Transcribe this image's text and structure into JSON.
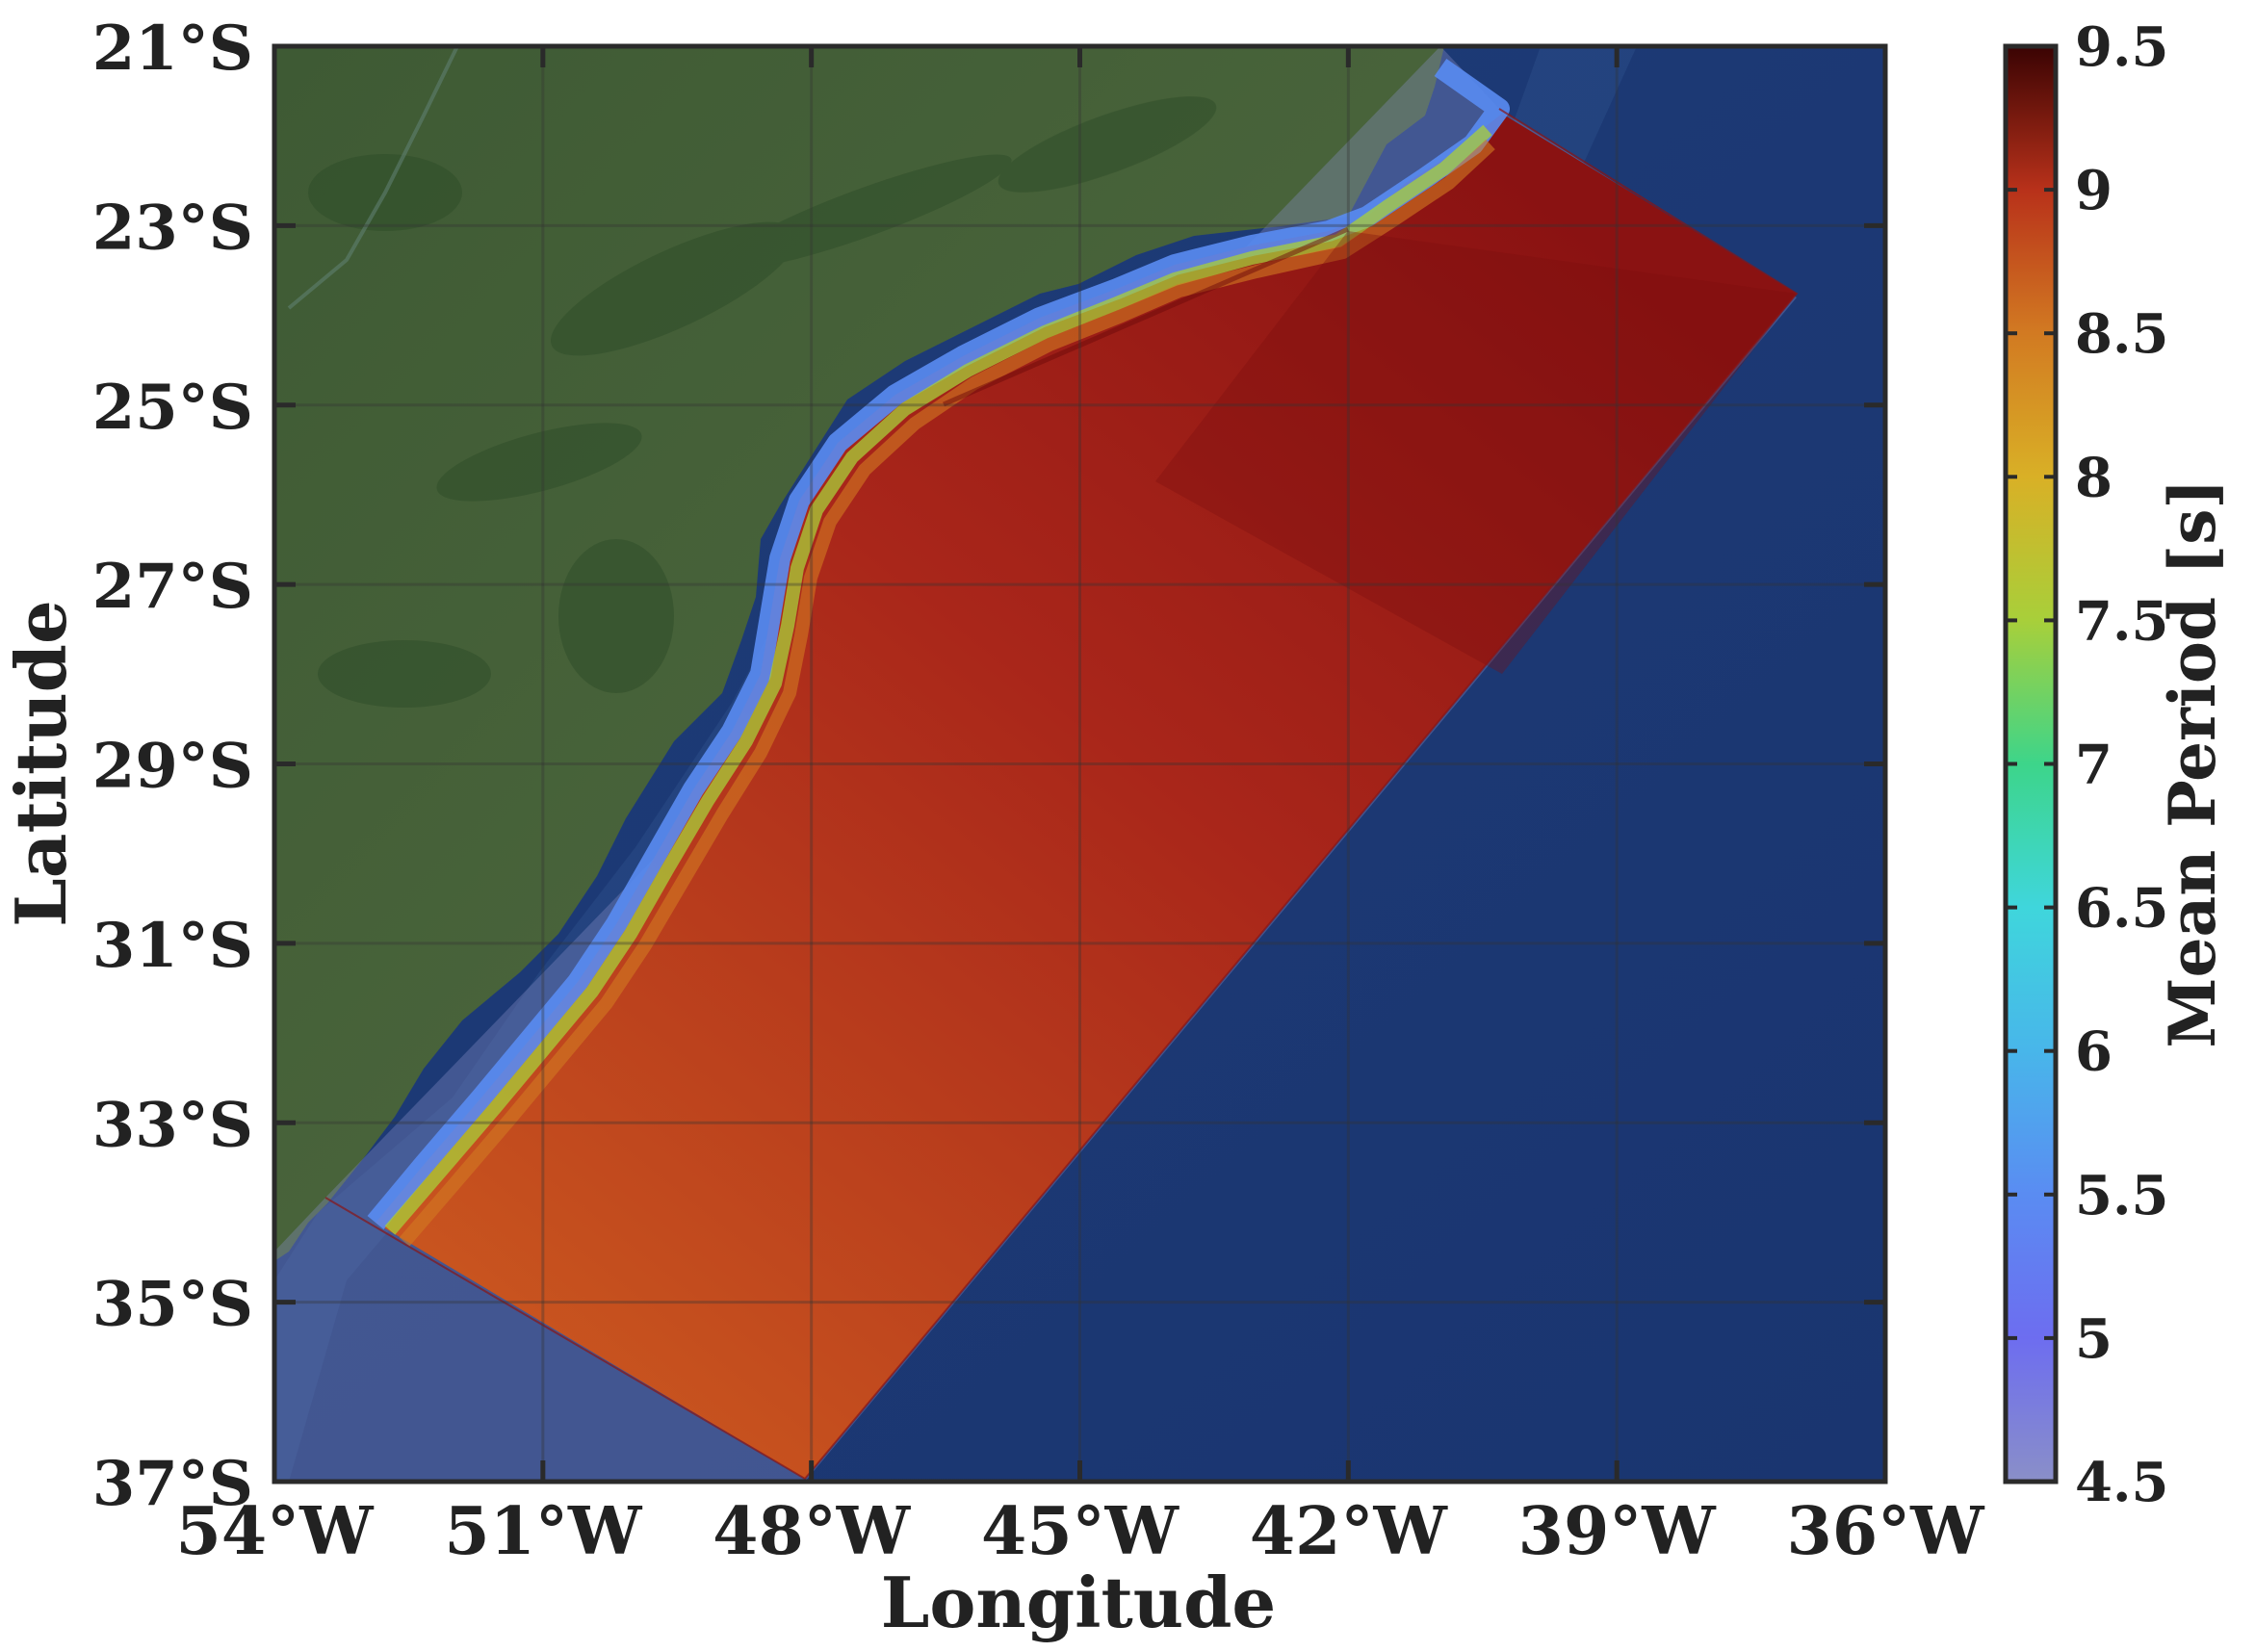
{
  "figure": {
    "x_axis_label": "Longitude",
    "y_axis_label": "Latitude",
    "colorbar_label": "Mean Period [s]"
  },
  "chart_data": {
    "type": "heatmap",
    "title": "",
    "xlabel": "Longitude",
    "ylabel": "Latitude",
    "xlim": [
      -54,
      -36
    ],
    "ylim": [
      -37,
      -21
    ],
    "x_ticks": [
      -54,
      -51,
      -48,
      -45,
      -42,
      -39,
      -36
    ],
    "x_tick_labels": [
      "54°W",
      "51°W",
      "48°W",
      "45°W",
      "42°W",
      "39°W",
      "36°W"
    ],
    "y_ticks": [
      -21,
      -23,
      -25,
      -27,
      -29,
      -31,
      -33,
      -35,
      -37
    ],
    "y_tick_labels": [
      "21°S",
      "23°S",
      "25°S",
      "27°S",
      "29°S",
      "31°S",
      "33°S",
      "35°S",
      "37°S"
    ],
    "grid": true,
    "basemap": "satellite imagery (land and bathymetry)",
    "model_domain_corners": [
      [
        -41,
        -21.2
      ],
      [
        -37.1,
        -23.8
      ],
      [
        -48.1,
        -37
      ],
      [
        -53.6,
        -33.8
      ]
    ],
    "colorbar": {
      "label": "Mean Period [s]",
      "range": [
        4.5,
        9.5
      ],
      "ticks": [
        4.5,
        5,
        5.5,
        6,
        6.5,
        7,
        7.5,
        8,
        8.5,
        9,
        9.5
      ],
      "tick_labels": [
        "4.5",
        "5",
        "5.5",
        "6",
        "6.5",
        "7",
        "7.5",
        "8",
        "8.5",
        "9",
        "9.5"
      ],
      "colormap": [
        "#8a8fc8",
        "#6d6df0",
        "#5aa0f0",
        "#3fd6dc",
        "#3dd58a",
        "#a8cf3a",
        "#d9b026",
        "#d27a22",
        "#c2421a",
        "#8a1010",
        "#3a0303"
      ]
    },
    "field_description_values": {
      "nearshore_min": 5,
      "southern_offshore": 8.4,
      "central_offshore": 8.9,
      "northern_offshore": 9.2
    }
  }
}
